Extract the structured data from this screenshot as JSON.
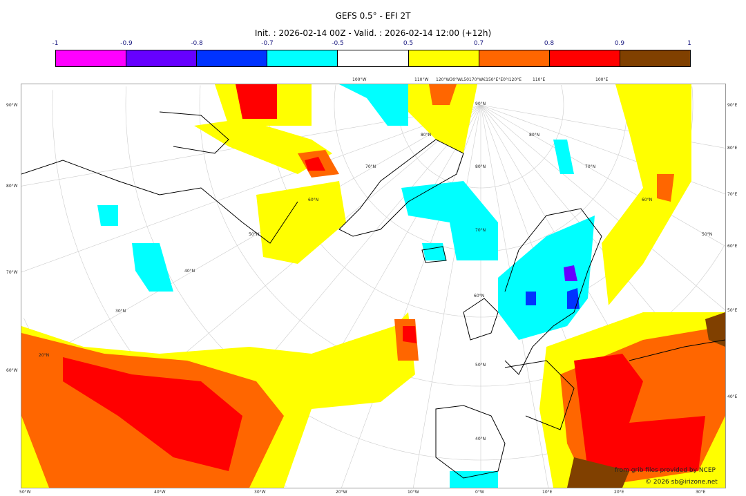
{
  "title": "GEFS 0.5° - EFI 2T",
  "subtitle": "Init. : 2026-02-14 00Z - Valid. : 2026-02-14 12:00 (+12h)",
  "colorbar": {
    "ticks": [
      "-1",
      "-0.9",
      "-0.8",
      "-0.7",
      "-0.5",
      "0.5",
      "0.7",
      "0.8",
      "0.9",
      "1"
    ],
    "colors": [
      "#ff00ff",
      "#6600ff",
      "#0033ff",
      "#00ffff",
      "#ffffff",
      "#ffff00",
      "#ff6600",
      "#ff0000",
      "#804000"
    ]
  },
  "map": {
    "left_labels": [
      "90°W",
      "80°W",
      "70°W",
      "60°W"
    ],
    "right_labels": [
      "90°E",
      "80°E",
      "70°E",
      "60°E",
      "50°E",
      "40°E"
    ],
    "bottom_labels": [
      "50°W",
      "40°W",
      "30°W",
      "20°W",
      "10°W",
      "0°W",
      "10°E",
      "20°E",
      "30°E"
    ],
    "top_labels": [
      "100°W",
      "110°W",
      "120°W30°WL50170°W€150°E°E0°I120°E",
      "110°E",
      "100°E"
    ],
    "lat_labels": [
      "90°N",
      "80°N",
      "70°N",
      "60°N",
      "50°N",
      "40°N",
      "70°N",
      "60°N",
      "50°N",
      "40°N",
      "30°N",
      "20°N",
      "80°N",
      "80°N",
      "70°N",
      "60°N",
      "50°N"
    ]
  },
  "credits": {
    "line1": "from grib files provided by NCEP",
    "line2": "© 2026 sb@irizone.net"
  }
}
